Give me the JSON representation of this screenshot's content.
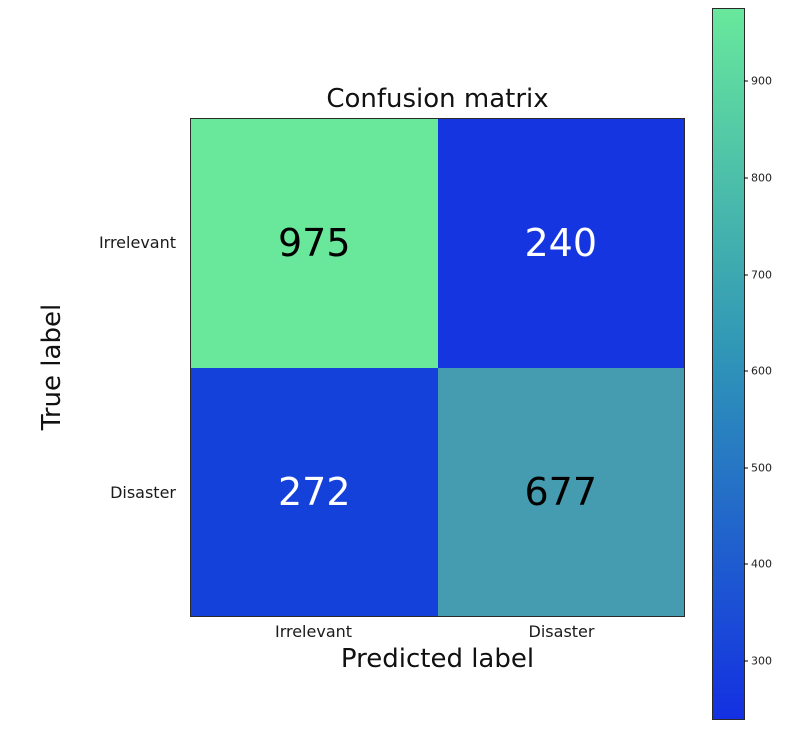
{
  "chart_data": {
    "type": "heatmap",
    "title": "Confusion matrix",
    "xlabel": "Predicted label",
    "ylabel": "True label",
    "x_tick_labels": [
      "Irrelevant",
      "Disaster"
    ],
    "y_tick_labels": [
      "Irrelevant",
      "Disaster"
    ],
    "matrix": [
      [
        975,
        240
      ],
      [
        272,
        677
      ]
    ],
    "vmin": 240,
    "vmax": 975,
    "colormap": "winter",
    "cells": [
      {
        "row": 0,
        "col": 0,
        "value": "975",
        "bg": "#69e89b",
        "fg": "#000000"
      },
      {
        "row": 0,
        "col": 1,
        "value": "240",
        "bg": "#1435e0",
        "fg": "#ffffff"
      },
      {
        "row": 1,
        "col": 0,
        "value": "272",
        "bg": "#1541db",
        "fg": "#ffffff"
      },
      {
        "row": 1,
        "col": 1,
        "value": "677",
        "bg": "#459cb1",
        "fg": "#000000"
      }
    ],
    "colorbar": {
      "ticks": [
        300,
        400,
        500,
        600,
        700,
        800,
        900
      ],
      "bottom_color": "#1330e2",
      "mid_color": "#2e93b8",
      "top_color": "#68e89c"
    }
  }
}
